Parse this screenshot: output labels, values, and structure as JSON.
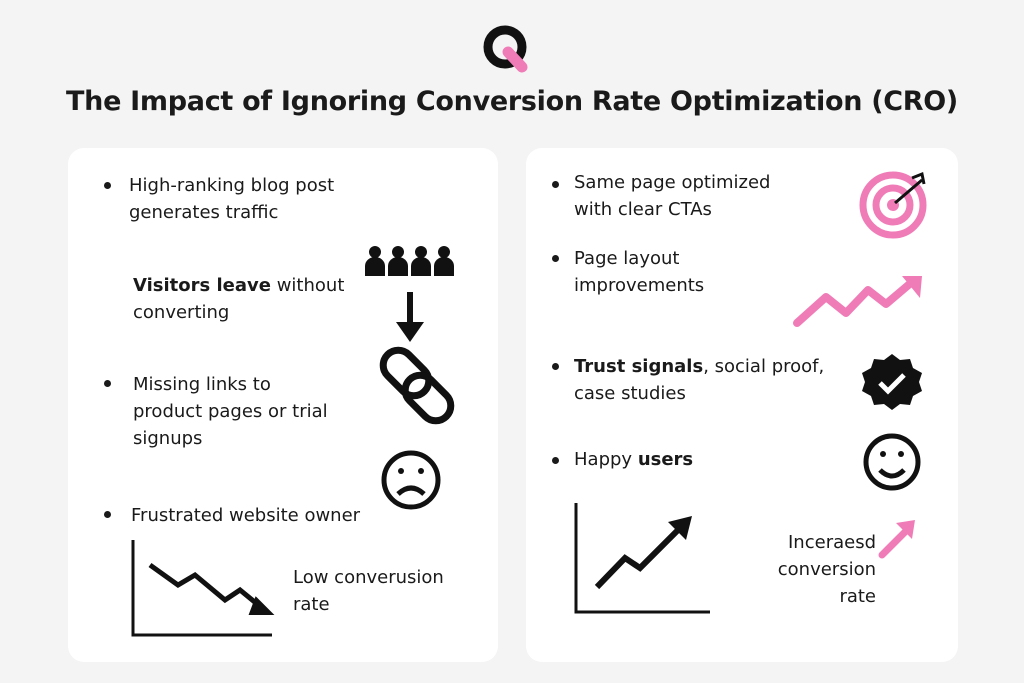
{
  "title": "The Impact of Ignoring Conversion Rate Optimization (CRO)",
  "left": {
    "items": [
      {
        "text": "High-ranking blog post generates traffic"
      },
      {
        "bold": "Visitors leave",
        "text": "without converting"
      },
      {
        "text": "Missing links to product pages or trial signups"
      },
      {
        "text": "Frustrated website owner"
      }
    ],
    "chart_label": "Low converusion rate"
  },
  "right": {
    "items": [
      {
        "text": "Same page optimized with clear CTAs"
      },
      {
        "text": "Page layout improvements"
      },
      {
        "bold": "Trust signals",
        "text": ", social proof, case studies"
      },
      {
        "text": "Happy",
        "bold": "users"
      }
    ],
    "chart_label": "Inceraesd conversion rate"
  }
}
